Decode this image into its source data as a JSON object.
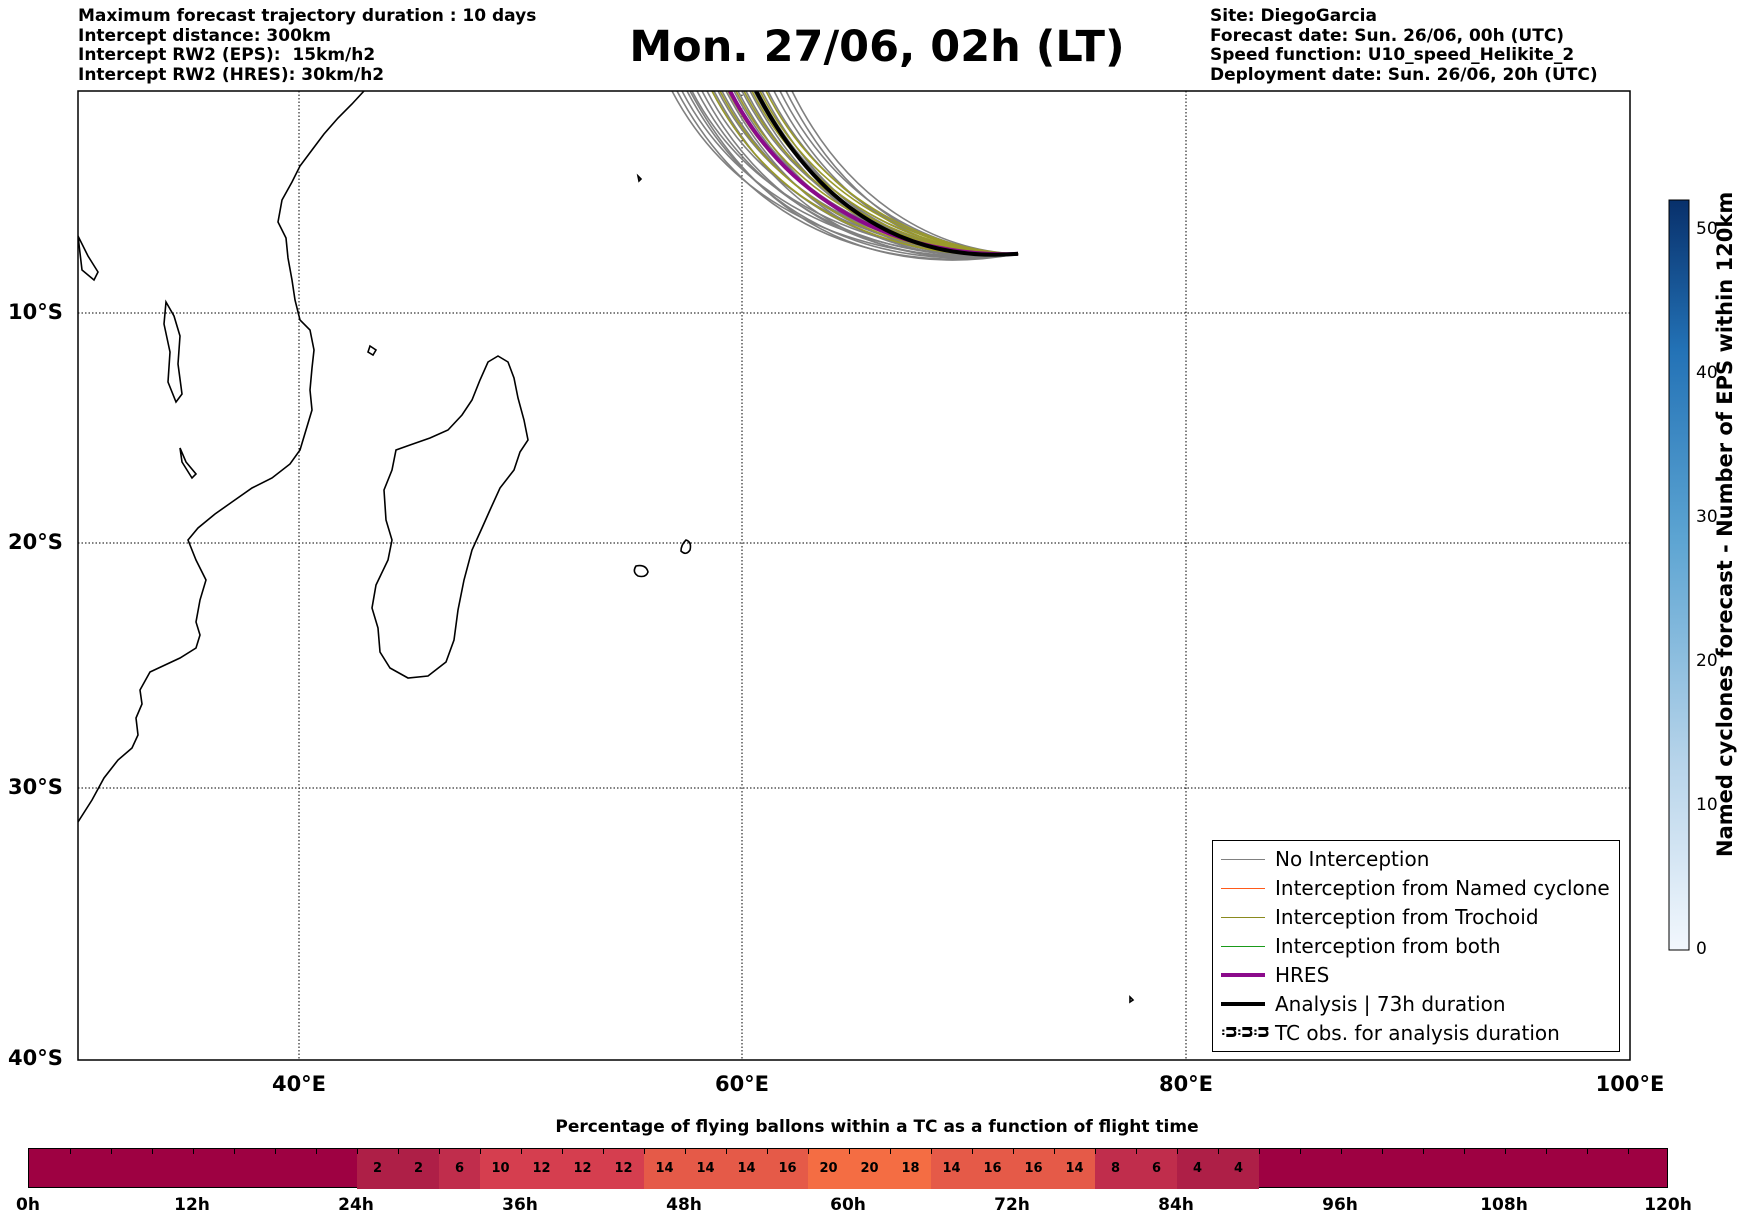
{
  "header_left": [
    "Maximum forecast trajectory duration : 10 days",
    "Intercept distance: 300km",
    "Intercept RW2 (EPS):  15km/h2",
    "Intercept RW2 (HRES): 30km/h2"
  ],
  "header_right": [
    "Site: DiegoGarcia",
    "Forecast date: Sun. 26/06, 00h (UTC)",
    "Speed function: U10_speed_Helikite_2",
    "Deployment date: Sun. 26/06, 20h (UTC)"
  ],
  "title": "Mon. 27/06, 02h (LT)",
  "map": {
    "lon_range": [
      30,
      100
    ],
    "lat_range": [
      -40,
      0
    ],
    "lat_labels": [
      "10°S",
      "20°S",
      "30°S",
      "40°S"
    ],
    "lon_labels": [
      "40°E",
      "60°E",
      "80°E",
      "100°E"
    ]
  },
  "legend": [
    {
      "label": "No Interception",
      "color": "#808080"
    },
    {
      "label": "Interception from Named cyclone",
      "color": "#ff5a1a"
    },
    {
      "label": "Interception from Trochoid",
      "color": "#8a8a1e"
    },
    {
      "label": "Interception from both",
      "color": "#1a9a1a"
    },
    {
      "label": "HRES",
      "color": "#8b0a8b"
    },
    {
      "label": "Analysis | 73h duration",
      "color": "#000000"
    },
    {
      "label": "TC obs. for analysis duration",
      "color": "#000000",
      "icon": "cyclone-symbols-icon"
    }
  ],
  "colorbar": {
    "label": "Named cyclones forecast - Number of EPS within 120km",
    "ticks": [
      "0",
      "10",
      "20",
      "30",
      "40",
      "50"
    ],
    "range": [
      0,
      52
    ]
  },
  "bottom_title": "Percentage of flying ballons within a TC as a function of flight time",
  "time_ticks": [
    "0h",
    "12h",
    "24h",
    "36h",
    "48h",
    "60h",
    "72h",
    "84h",
    "96h",
    "108h",
    "120h"
  ],
  "time_cells": [
    "2",
    "2",
    "6",
    "10",
    "12",
    "12",
    "12",
    "14",
    "14",
    "14",
    "16",
    "20",
    "20",
    "18",
    "14",
    "16",
    "16",
    "14",
    "8",
    "6",
    "4",
    "4"
  ],
  "time_cells_start_hour": 24,
  "time_cells_step_hours": 3,
  "time_bar_base_color": "#9e0142",
  "trajectory_end": {
    "lon": 72.4,
    "lat": -7.3
  }
}
